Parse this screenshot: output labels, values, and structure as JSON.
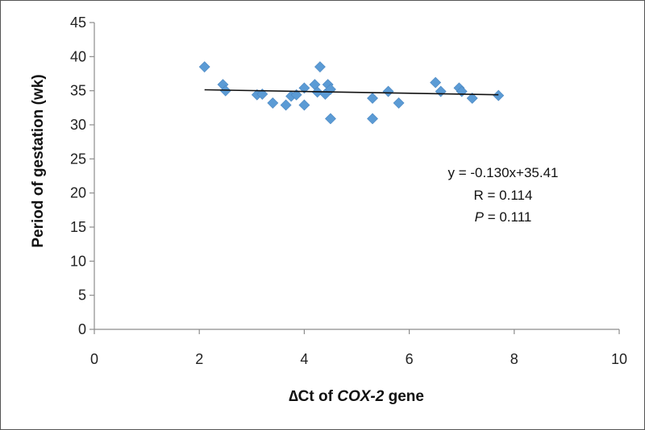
{
  "chart_data": {
    "type": "scatter",
    "xlabel": {
      "prefix": "∆Ct of ",
      "gene": "COX-2",
      "suffix": " gene"
    },
    "ylabel": "Period of gestation (wk)",
    "xlim": [
      0,
      10
    ],
    "ylim": [
      0,
      45
    ],
    "xticks": [
      "0",
      "2",
      "4",
      "6",
      "8",
      "10"
    ],
    "yticks": [
      "0",
      "5",
      "10",
      "15",
      "20",
      "25",
      "30",
      "35",
      "40",
      "45"
    ],
    "grid": false,
    "legend": "none",
    "marker_color": "#5b9bd5",
    "trendline": {
      "x_start": 2.1,
      "x_end": 7.7,
      "slope": -0.13,
      "intercept": 35.41
    },
    "annotation": {
      "equation": "y = -0.130x+35.41",
      "r_text": "R = 0.114",
      "p_symbol": "P",
      "p_value": " = 0.111"
    },
    "points": [
      {
        "x": 2.1,
        "y": 38.5
      },
      {
        "x": 2.45,
        "y": 35.9
      },
      {
        "x": 2.5,
        "y": 35.0
      },
      {
        "x": 3.1,
        "y": 34.4
      },
      {
        "x": 3.2,
        "y": 34.5
      },
      {
        "x": 3.4,
        "y": 33.2
      },
      {
        "x": 3.65,
        "y": 32.9
      },
      {
        "x": 3.75,
        "y": 34.2
      },
      {
        "x": 3.85,
        "y": 34.4
      },
      {
        "x": 4.0,
        "y": 35.4
      },
      {
        "x": 4.0,
        "y": 32.9
      },
      {
        "x": 4.2,
        "y": 35.9
      },
      {
        "x": 4.25,
        "y": 34.8
      },
      {
        "x": 4.3,
        "y": 38.5
      },
      {
        "x": 4.4,
        "y": 34.5
      },
      {
        "x": 4.45,
        "y": 35.9
      },
      {
        "x": 4.5,
        "y": 35.2
      },
      {
        "x": 4.5,
        "y": 30.9
      },
      {
        "x": 5.3,
        "y": 33.9
      },
      {
        "x": 5.3,
        "y": 30.9
      },
      {
        "x": 5.6,
        "y": 34.9
      },
      {
        "x": 5.8,
        "y": 33.2
      },
      {
        "x": 6.5,
        "y": 36.2
      },
      {
        "x": 6.6,
        "y": 34.9
      },
      {
        "x": 6.95,
        "y": 35.4
      },
      {
        "x": 7.0,
        "y": 34.9
      },
      {
        "x": 7.2,
        "y": 33.9
      },
      {
        "x": 7.7,
        "y": 34.3
      }
    ]
  }
}
